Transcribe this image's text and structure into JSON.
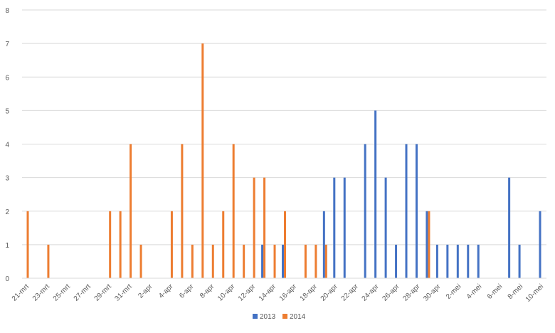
{
  "chart_data": {
    "type": "bar",
    "title": "",
    "xlabel": "",
    "ylabel": "",
    "ylim": [
      0,
      8
    ],
    "y_ticks": [
      "0",
      "1",
      "2",
      "3",
      "4",
      "5",
      "6",
      "7",
      "8"
    ],
    "grid": true,
    "legend_position": "bottom",
    "categories": [
      "21-mrt",
      "22-mrt",
      "23-mrt",
      "24-mrt",
      "25-mrt",
      "26-mrt",
      "27-mrt",
      "28-mrt",
      "29-mrt",
      "30-mrt",
      "31-mrt",
      "1-apr",
      "2-apr",
      "3-apr",
      "4-apr",
      "5-apr",
      "6-apr",
      "7-apr",
      "8-apr",
      "9-apr",
      "10-apr",
      "11-apr",
      "12-apr",
      "13-apr",
      "14-apr",
      "15-apr",
      "16-apr",
      "17-apr",
      "18-apr",
      "19-apr",
      "20-apr",
      "21-apr",
      "22-apr",
      "23-apr",
      "24-apr",
      "25-apr",
      "26-apr",
      "27-apr",
      "28-apr",
      "29-apr",
      "30-apr",
      "1-mei",
      "2-mei",
      "3-mei",
      "4-mei",
      "5-mei",
      "6-mei",
      "7-mei",
      "8-mei",
      "9-mei",
      "10-mei"
    ],
    "tick_labels": [
      "21-mrt",
      "23-mrt",
      "25-mrt",
      "27-mrt",
      "29-mrt",
      "31-mrt",
      "2-apr",
      "4-apr",
      "6-apr",
      "8-apr",
      "10-apr",
      "12-apr",
      "14-apr",
      "16-apr",
      "18-apr",
      "20-apr",
      "22-apr",
      "24-apr",
      "26-apr",
      "28-apr",
      "30-apr",
      "2-mei",
      "4-mei",
      "6-mei",
      "8-mei",
      "10-mei"
    ],
    "series": [
      {
        "name": "2013",
        "color": "#4472c4",
        "values": [
          0,
          0,
          0,
          0,
          0,
          0,
          0,
          0,
          0,
          0,
          0,
          0,
          0,
          0,
          0,
          0,
          0,
          0,
          0,
          0,
          0,
          0,
          0,
          1,
          0,
          1,
          0,
          0,
          0,
          2,
          3,
          3,
          0,
          4,
          5,
          3,
          1,
          4,
          4,
          2,
          1,
          1,
          1,
          1,
          1,
          0,
          0,
          3,
          1,
          0,
          2
        ]
      },
      {
        "name": "2014",
        "color": "#ed7d31",
        "values": [
          2,
          0,
          1,
          0,
          0,
          0,
          0,
          0,
          2,
          2,
          4,
          1,
          0,
          0,
          2,
          4,
          1,
          7,
          1,
          2,
          4,
          1,
          3,
          3,
          1,
          2,
          0,
          1,
          1,
          1,
          0,
          0,
          0,
          0,
          0,
          0,
          0,
          0,
          0,
          2,
          0,
          0,
          0,
          0,
          0,
          0,
          0,
          0,
          0,
          0,
          0
        ]
      }
    ]
  }
}
